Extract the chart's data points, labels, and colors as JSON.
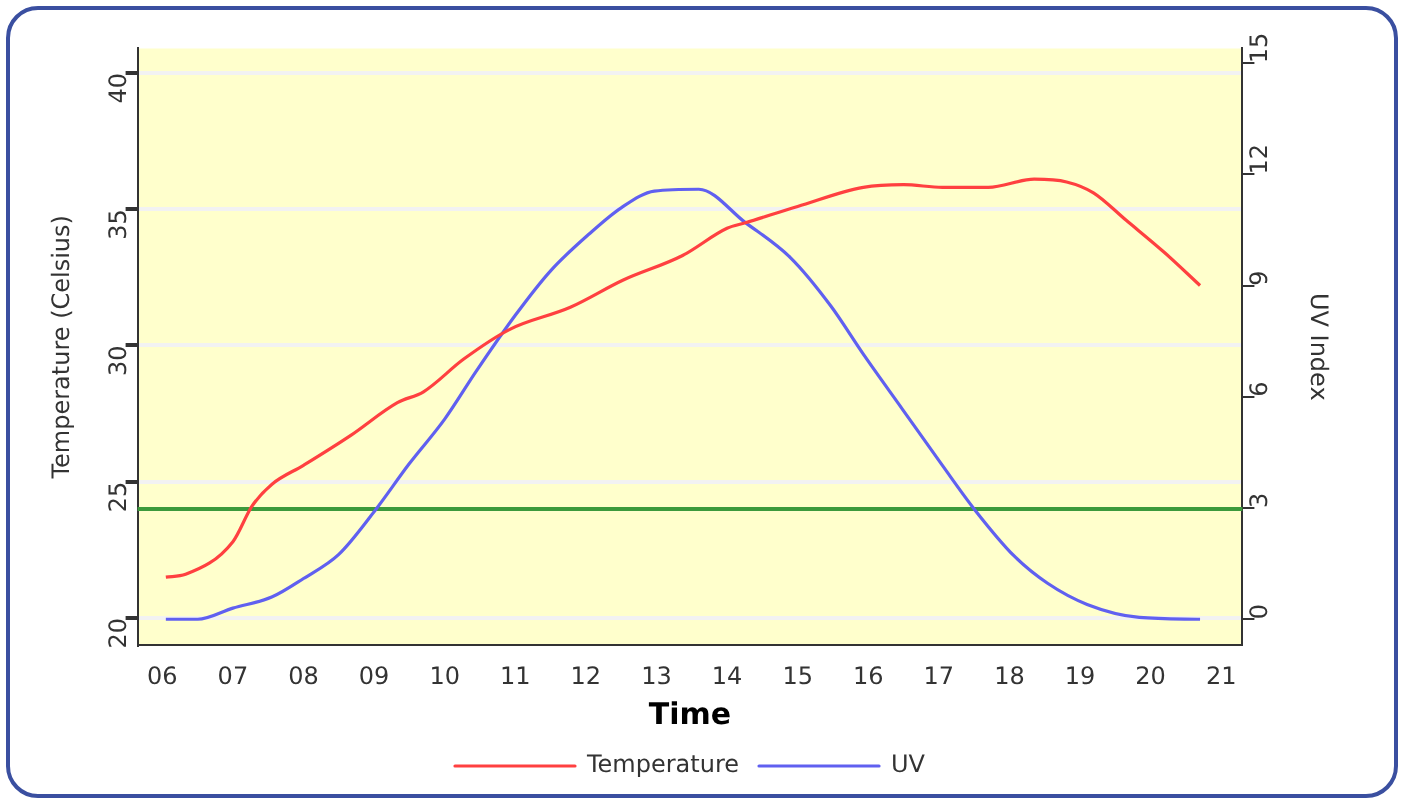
{
  "chart_data": {
    "type": "line",
    "xlabel": "Time",
    "ylabel": "Temperature (Celsius)",
    "y2label": "UV Index",
    "xlim": [
      5.65,
      21.3
    ],
    "xticks": [
      {
        "value": 6,
        "label": "06"
      },
      {
        "value": 7,
        "label": "07"
      },
      {
        "value": 8,
        "label": "08"
      },
      {
        "value": 9,
        "label": "09"
      },
      10,
      11,
      12,
      13,
      14,
      15,
      16,
      17,
      18,
      19,
      20,
      21
    ],
    "ylim": [
      19,
      40.9
    ],
    "yticks": [
      20,
      25,
      30,
      35,
      40
    ],
    "y2lim": [
      -0.7,
      15.4
    ],
    "y2ticks": [
      0,
      3,
      6,
      9,
      12,
      15
    ],
    "grid": "y",
    "legend": "bottom",
    "marker": "none",
    "line_style": "solid",
    "ref_lines": [
      {
        "axis": "y",
        "value": 24,
        "color": "#3c9a3c"
      }
    ],
    "series": [
      {
        "name": "Temperature",
        "color": "#ff4040",
        "x": [
          6.05,
          6.33,
          7.0,
          7.27,
          7.55,
          8.0,
          8.67,
          9.33,
          9.7,
          10.27,
          10.93,
          11.78,
          12.53,
          13.37,
          14.0,
          14.26,
          15.0,
          15.93,
          16.5,
          17.05,
          17.7,
          18.35,
          18.81,
          19.19,
          19.65,
          20.2,
          20.7
        ],
        "values": [
          21.5,
          21.6,
          22.8,
          24.1,
          24.9,
          25.6,
          26.7,
          27.9,
          28.3,
          29.5,
          30.6,
          31.4,
          32.4,
          33.3,
          34.3,
          34.5,
          35.1,
          35.8,
          35.9,
          35.8,
          35.8,
          36.1,
          36.0,
          35.6,
          34.6,
          33.4,
          32.2
        ]
      },
      {
        "name": "UV",
        "color": "#6060f0",
        "axis": "y2",
        "x": [
          6.05,
          6.5,
          7.0,
          7.55,
          8.0,
          8.5,
          9.0,
          9.5,
          10.0,
          10.45,
          11.0,
          11.5,
          12.05,
          12.5,
          12.97,
          13.6,
          14.26,
          14.9,
          15.47,
          15.93,
          16.49,
          17.05,
          17.51,
          18.07,
          18.54,
          19.1,
          19.84,
          20.7
        ],
        "values": [
          0,
          0,
          0.3,
          0.6,
          1.1,
          1.75,
          2.9,
          4.2,
          5.4,
          6.7,
          8.2,
          9.4,
          10.4,
          11.1,
          11.55,
          11.6,
          10.7,
          9.75,
          8.45,
          7.15,
          5.65,
          4.15,
          2.95,
          1.7,
          0.97,
          0.4,
          0.05,
          0
        ]
      }
    ]
  }
}
